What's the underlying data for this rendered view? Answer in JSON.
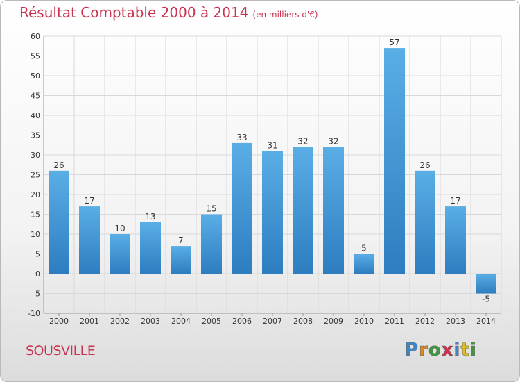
{
  "header": {
    "title": "Résultat Comptable 2000 à 2014",
    "subtitle": "(en milliers d'€)"
  },
  "footer": {
    "location": "SOUSVILLE",
    "logo": [
      "P",
      "r",
      "o",
      "x",
      "i",
      "t",
      "i"
    ]
  },
  "colors": {
    "accent": "#c8334f",
    "bar_top": "#5aaee6",
    "bar_bottom": "#2d7dc0",
    "grid": "#d8d8d8"
  },
  "chart_data": {
    "type": "bar",
    "title": "Résultat Comptable 2000 à 2014",
    "ylabel": "en milliers d'€",
    "categories": [
      "2000",
      "2001",
      "2002",
      "2003",
      "2004",
      "2005",
      "2006",
      "2007",
      "2008",
      "2009",
      "2010",
      "2011",
      "2012",
      "2013",
      "2014"
    ],
    "values": [
      26,
      17,
      10,
      13,
      7,
      15,
      33,
      31,
      32,
      32,
      5,
      57,
      26,
      17,
      -5
    ],
    "ylim": [
      -10,
      60
    ],
    "yticks": [
      -10,
      -5,
      0,
      5,
      10,
      15,
      20,
      25,
      30,
      35,
      40,
      45,
      50,
      55,
      60
    ],
    "grid": true
  }
}
